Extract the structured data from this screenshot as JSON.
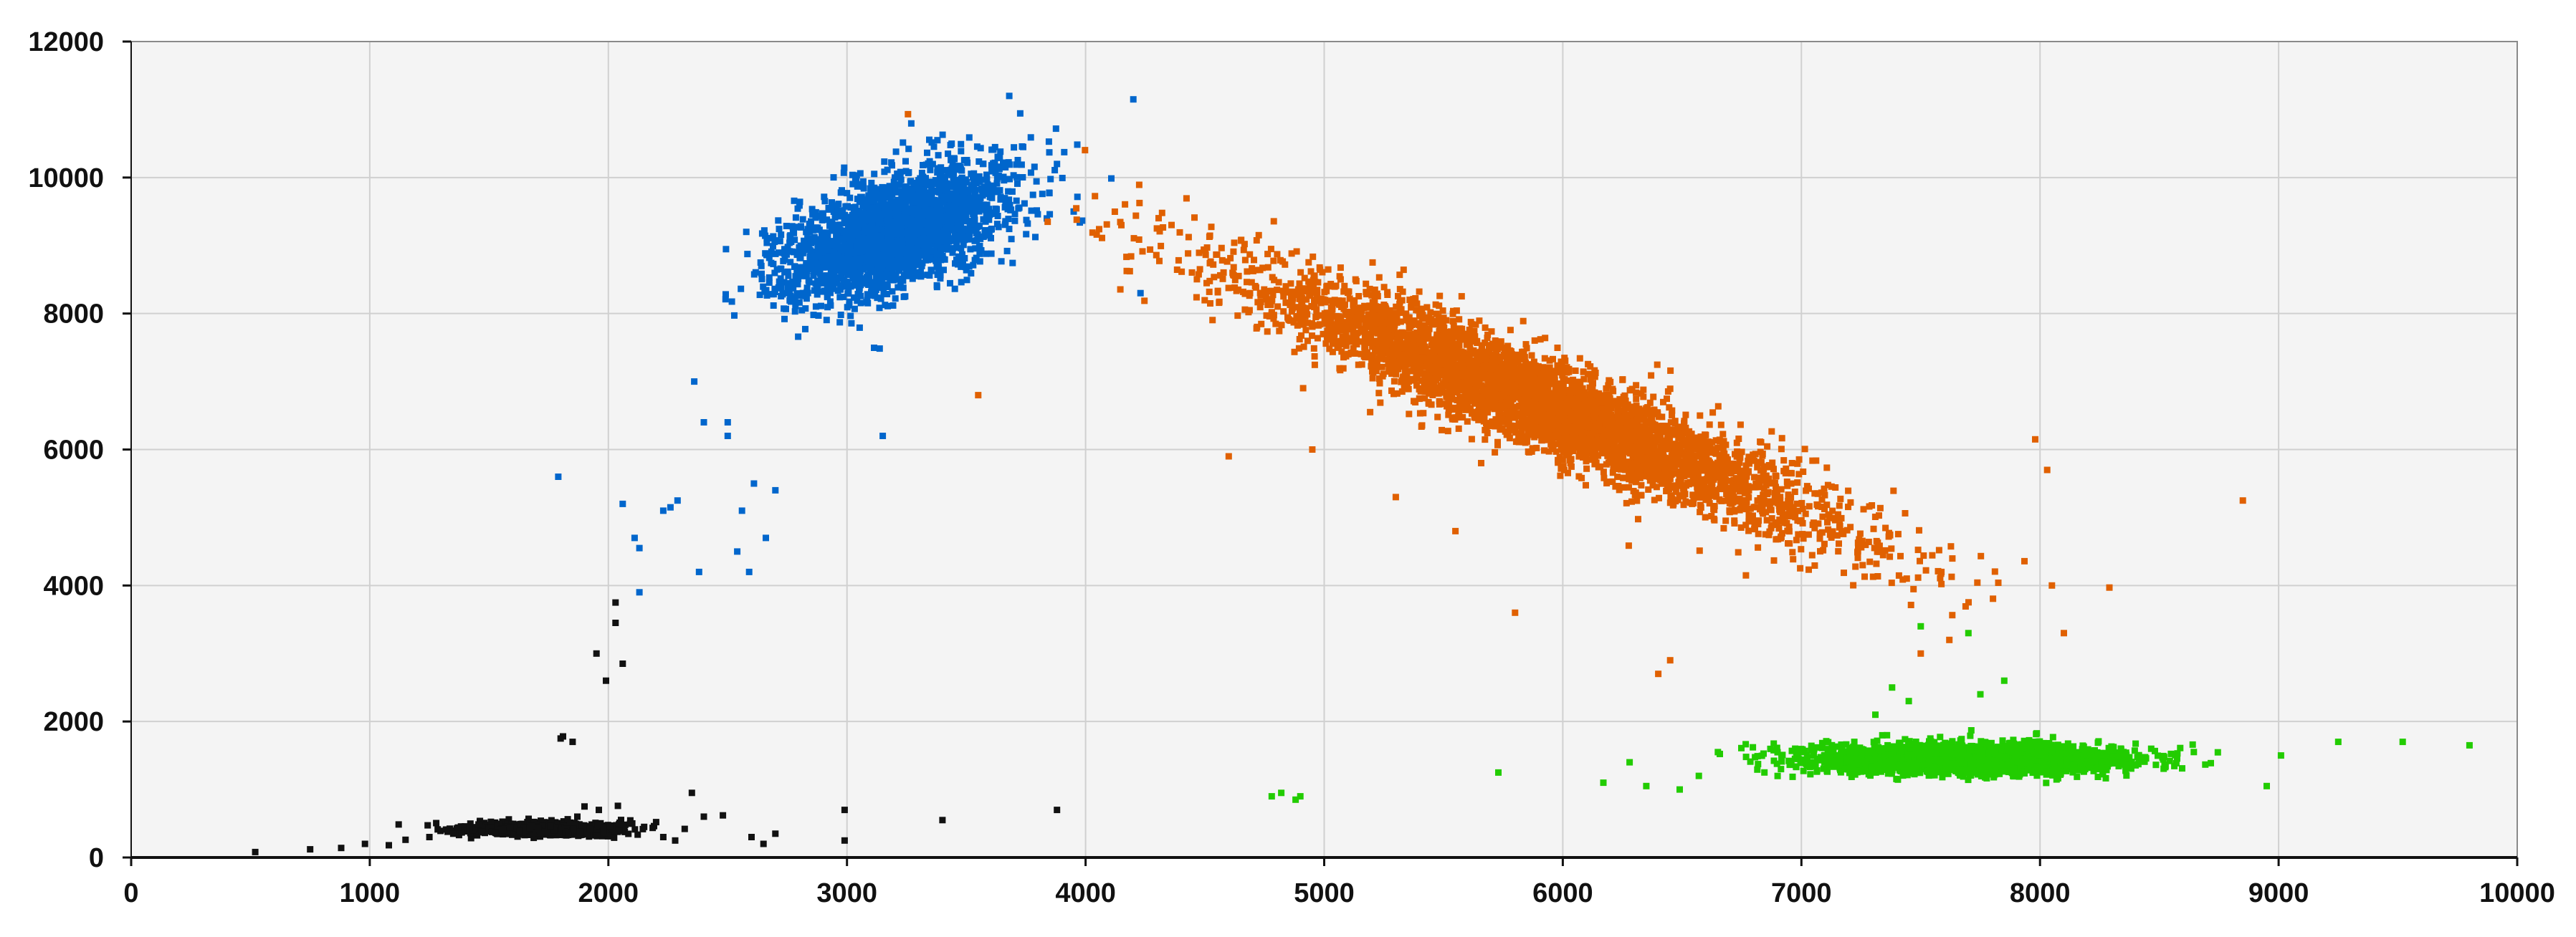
{
  "chart_data": {
    "type": "scatter",
    "title": "",
    "xlabel": "",
    "ylabel": "",
    "xlim": [
      0,
      10000
    ],
    "ylim": [
      0,
      12000
    ],
    "xticks": [
      "0",
      "1000",
      "2000",
      "3000",
      "4000",
      "5000",
      "6000",
      "7000",
      "8000",
      "9000",
      "10000"
    ],
    "yticks": [
      "0",
      "2000",
      "4000",
      "6000",
      "8000",
      "10000",
      "12000"
    ],
    "grid": true,
    "legend": "none",
    "plot_background": "#f4f4f4",
    "series": [
      {
        "color": "#111111",
        "cluster": {
          "cx": 1720,
          "cy": 420,
          "sx": 150,
          "sy": 45,
          "count": 1000
        },
        "outliers": [
          [
            520,
            80
          ],
          [
            750,
            120
          ],
          [
            880,
            140
          ],
          [
            980,
            200
          ],
          [
            1080,
            180
          ],
          [
            1150,
            260
          ],
          [
            1250,
            300
          ],
          [
            1350,
            350
          ],
          [
            1810,
            1780
          ],
          [
            1850,
            1700
          ],
          [
            1800,
            1750
          ],
          [
            1870,
            600
          ],
          [
            1900,
            750
          ],
          [
            1960,
            700
          ],
          [
            2040,
            760
          ],
          [
            2100,
            500
          ],
          [
            2150,
            450
          ],
          [
            2200,
            520
          ],
          [
            2230,
            300
          ],
          [
            2280,
            250
          ],
          [
            2320,
            420
          ],
          [
            2350,
            950
          ],
          [
            2400,
            600
          ],
          [
            2480,
            620
          ],
          [
            2600,
            300
          ],
          [
            2650,
            200
          ],
          [
            2700,
            350
          ],
          [
            2990,
            700
          ],
          [
            2990,
            250
          ],
          [
            3400,
            550
          ],
          [
            3880,
            700
          ],
          [
            1950,
            3000
          ],
          [
            1990,
            2600
          ],
          [
            2030,
            3750
          ],
          [
            2030,
            3450
          ],
          [
            2060,
            2850
          ]
        ]
      },
      {
        "color": "#0066cc",
        "cluster": {
          "cx": 3200,
          "cy": 9200,
          "sx": 230,
          "sy": 480,
          "rho": 0.55,
          "count": 2600
        },
        "outliers": [
          [
            1790,
            5600
          ],
          [
            2060,
            5200
          ],
          [
            2110,
            4700
          ],
          [
            2130,
            4550
          ],
          [
            2130,
            3900
          ],
          [
            2230,
            5100
          ],
          [
            2260,
            5150
          ],
          [
            2290,
            5250
          ],
          [
            2360,
            7000
          ],
          [
            2380,
            4200
          ],
          [
            2400,
            6400
          ],
          [
            2500,
            6200
          ],
          [
            2500,
            6400
          ],
          [
            2540,
            4500
          ],
          [
            2560,
            5100
          ],
          [
            2590,
            4200
          ],
          [
            2610,
            5500
          ],
          [
            2660,
            4700
          ],
          [
            2700,
            5400
          ],
          [
            3150,
            6200
          ],
          [
            4200,
            11150
          ],
          [
            3680,
            11200
          ],
          [
            3880,
            10200
          ],
          [
            3950,
            9500
          ],
          [
            4230,
            8300
          ]
        ]
      },
      {
        "color": "#e06000",
        "cluster": {
          "cx": 5900,
          "cy": 6700,
          "sx": 620,
          "sy": 350,
          "slope": -1.45,
          "count": 4200
        },
        "outliers": [
          [
            3550,
            6800
          ],
          [
            4150,
            9300
          ],
          [
            4600,
            5900
          ],
          [
            4950,
            6000
          ],
          [
            5300,
            5300
          ],
          [
            5550,
            4800
          ],
          [
            5800,
            3600
          ],
          [
            6400,
            2700
          ],
          [
            6450,
            2900
          ],
          [
            7500,
            3000
          ],
          [
            7620,
            3200
          ],
          [
            7980,
            6150
          ],
          [
            8030,
            5700
          ],
          [
            8050,
            4000
          ],
          [
            8100,
            3300
          ],
          [
            8850,
            5250
          ]
        ]
      },
      {
        "color": "#22cc00",
        "cluster": {
          "cx": 7700,
          "cy": 1450,
          "sx": 330,
          "sy": 110,
          "count": 2400
        },
        "outliers": [
          [
            4780,
            900
          ],
          [
            4820,
            950
          ],
          [
            4880,
            850
          ],
          [
            4900,
            900
          ],
          [
            5730,
            1250
          ],
          [
            6170,
            1100
          ],
          [
            6280,
            1400
          ],
          [
            6350,
            1050
          ],
          [
            6490,
            1000
          ],
          [
            6570,
            1200
          ],
          [
            6650,
            1550
          ],
          [
            7310,
            2100
          ],
          [
            7380,
            2500
          ],
          [
            7450,
            2300
          ],
          [
            7500,
            3400
          ],
          [
            7700,
            3300
          ],
          [
            7750,
            2400
          ],
          [
            7850,
            2600
          ],
          [
            8950,
            1050
          ],
          [
            9010,
            1500
          ],
          [
            9250,
            1700
          ],
          [
            9520,
            1700
          ],
          [
            9800,
            1650
          ]
        ]
      }
    ]
  }
}
